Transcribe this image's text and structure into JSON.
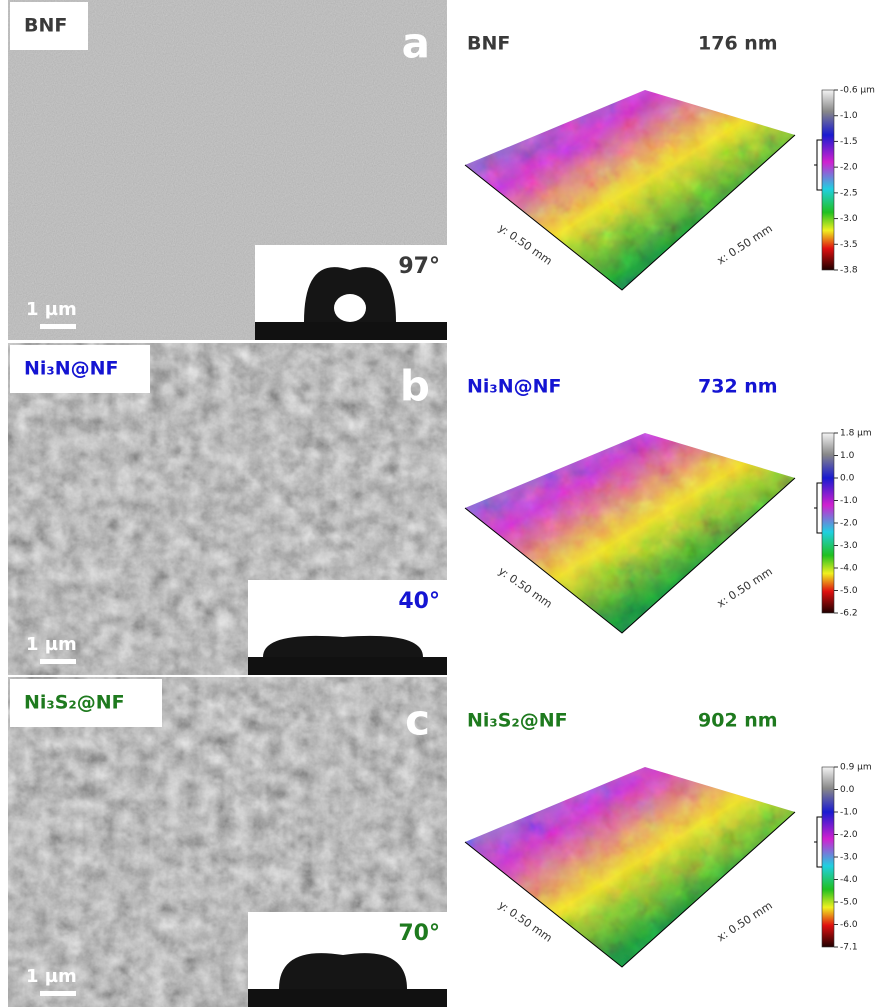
{
  "panels": [
    {
      "sem": {
        "label": "BNF",
        "letter": "a",
        "angle": "97°",
        "scale": "1 µm"
      },
      "afm": {
        "label": "BNF",
        "roughness": "176 nm",
        "y_axis": "y: 0.50 mm",
        "x_axis": "x: 0.50 mm",
        "colorbar": [
          "-0.6 µm",
          "-1.0",
          "-1.5",
          "-2.0",
          "-2.5",
          "-3.0",
          "-3.5",
          "-3.8"
        ]
      },
      "color": "#3a3a3a"
    },
    {
      "sem": {
        "label": "Ni₃N@NF",
        "letter": "b",
        "angle": "40°",
        "scale": "1 µm"
      },
      "afm": {
        "label": "Ni₃N@NF",
        "roughness": "732 nm",
        "y_axis": "y: 0.50 mm",
        "x_axis": "x: 0.50 mm",
        "colorbar": [
          "1.8 µm",
          "1.0",
          "0.0",
          "-1.0",
          "-2.0",
          "-3.0",
          "-4.0",
          "-5.0",
          "-6.2"
        ]
      },
      "color": "#1414d2"
    },
    {
      "sem": {
        "label": "Ni₃S₂@NF",
        "letter": "c",
        "angle": "70°",
        "scale": "1 µm"
      },
      "afm": {
        "label": "Ni₃S₂@NF",
        "roughness": "902 nm",
        "y_axis": "y: 0.50 mm",
        "x_axis": "x: 0.50 mm",
        "colorbar": [
          "0.9 µm",
          "0.0",
          "-1.0",
          "-2.0",
          "-3.0",
          "-4.0",
          "-5.0",
          "-6.0",
          "-7.1"
        ]
      },
      "color": "#1e7a1e"
    }
  ]
}
